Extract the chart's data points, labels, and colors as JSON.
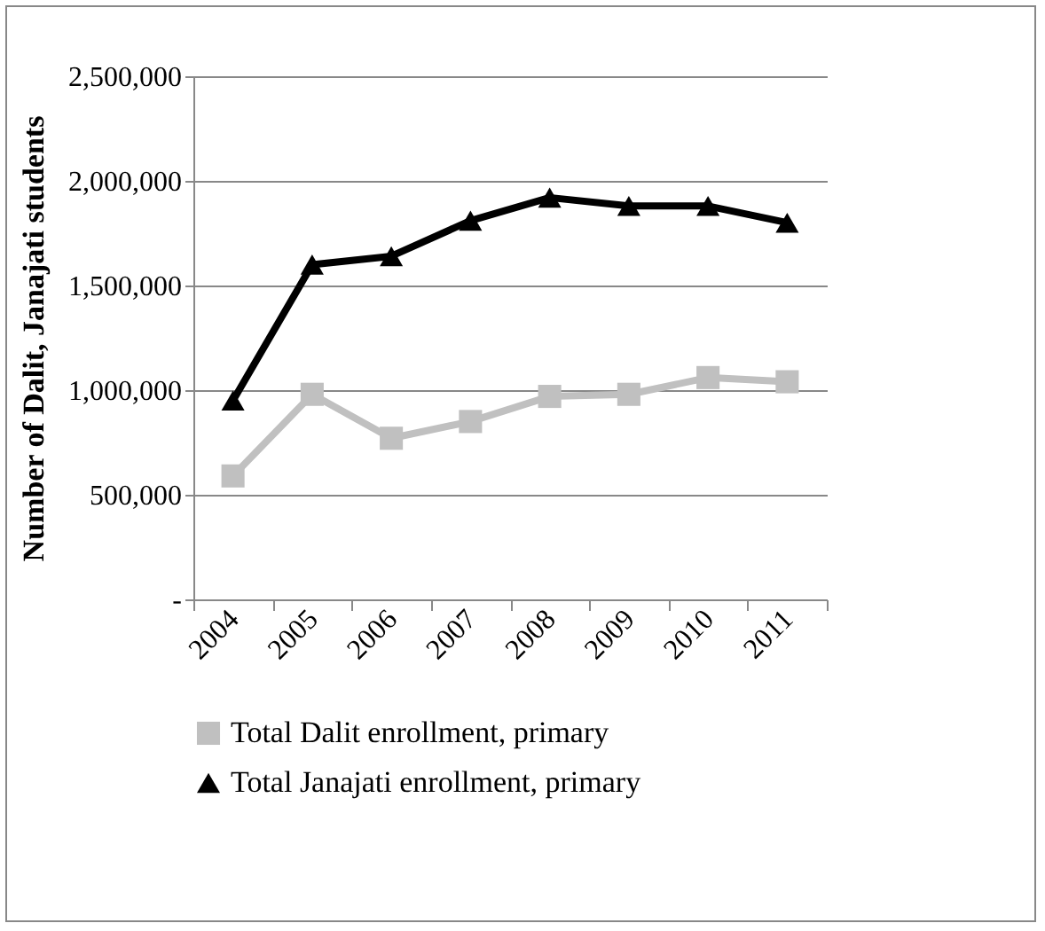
{
  "chart_data": {
    "type": "line",
    "ylabel": "Number of Dalit, Janajati students",
    "categories": [
      "2004",
      "2005",
      "2006",
      "2007",
      "2008",
      "2009",
      "2010",
      "2011"
    ],
    "series": [
      {
        "name": "Total Dalit enrollment, primary",
        "color": "#c0c0c0",
        "marker": "square",
        "values": [
          590000,
          980000,
          770000,
          850000,
          970000,
          980000,
          1060000,
          1040000
        ]
      },
      {
        "name": "Total Janajati enrollment, primary",
        "color": "#000000",
        "marker": "triangle",
        "values": [
          950000,
          1600000,
          1640000,
          1810000,
          1920000,
          1880000,
          1880000,
          1800000
        ]
      }
    ],
    "ylim": [
      0,
      2500000
    ],
    "yticks": [
      {
        "value": 0,
        "label": "-"
      },
      {
        "value": 500000,
        "label": "500,000"
      },
      {
        "value": 1000000,
        "label": "1,000,000"
      },
      {
        "value": 1500000,
        "label": "1,500,000"
      },
      {
        "value": 2000000,
        "label": "2,000,000"
      },
      {
        "value": 2500000,
        "label": "2,500,000"
      }
    ],
    "grid": "y",
    "legend": "bottom",
    "line_style": "solid"
  }
}
